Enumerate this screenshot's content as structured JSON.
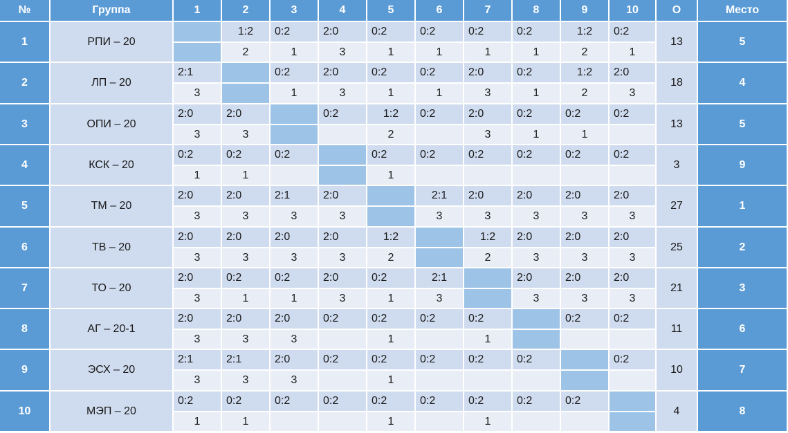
{
  "headers": {
    "no": "№",
    "group": "Группа",
    "opponents": [
      "1",
      "2",
      "3",
      "4",
      "5",
      "6",
      "7",
      "8",
      "9",
      "10"
    ],
    "points": "О",
    "place": "Место"
  },
  "rows": [
    {
      "no": "1",
      "group": "РПИ – 20",
      "scores": [
        "",
        "1:2",
        "0:2",
        "2:0",
        "0:2",
        "0:2",
        "0:2",
        "0:2",
        "1:2",
        "0:2"
      ],
      "pts": [
        "",
        "2",
        "1",
        "3",
        "1",
        "1",
        "1",
        "1",
        "2",
        "1"
      ],
      "points": "13",
      "place": "5"
    },
    {
      "no": "2",
      "group": "ЛП – 20",
      "scores": [
        "2:1",
        "",
        "0:2",
        "2:0",
        "0:2",
        "0:2",
        "2:0",
        "0:2",
        "1:2",
        "2:0"
      ],
      "pts": [
        "3",
        "",
        "1",
        "3",
        "1",
        "1",
        "3",
        "1",
        "2",
        "3"
      ],
      "points": "18",
      "place": "4"
    },
    {
      "no": "3",
      "group": "ОПИ – 20",
      "scores": [
        "2:0",
        "2:0",
        "",
        "0:2",
        "1:2",
        "0:2",
        "2:0",
        "0:2",
        "0:2",
        "0:2"
      ],
      "pts": [
        "3",
        "3",
        "",
        "",
        "2",
        "",
        "3",
        "1",
        "1",
        ""
      ],
      "points": "13",
      "place": "5"
    },
    {
      "no": "4",
      "group": "КСК – 20",
      "scores": [
        "0:2",
        "0:2",
        "0:2",
        "",
        "0:2",
        "0:2",
        "0:2",
        "0:2",
        "0:2",
        "0:2"
      ],
      "pts": [
        "1",
        "1",
        "",
        "",
        "1",
        "",
        "",
        "",
        "",
        ""
      ],
      "points": "3",
      "place": "9"
    },
    {
      "no": "5",
      "group": "ТМ – 20",
      "scores": [
        "2:0",
        "2:0",
        "2:1",
        "2:0",
        "",
        "2:1",
        "2:0",
        "2:0",
        "2:0",
        "2:0"
      ],
      "pts": [
        "3",
        "3",
        "3",
        "3",
        "",
        "3",
        "3",
        "3",
        "3",
        "3"
      ],
      "points": "27",
      "place": "1"
    },
    {
      "no": "6",
      "group": "ТВ – 20",
      "scores": [
        "2:0",
        "2:0",
        "2:0",
        "2:0",
        "1:2",
        "",
        "1:2",
        "2:0",
        "2:0",
        "2:0"
      ],
      "pts": [
        "3",
        "3",
        "3",
        "3",
        "2",
        "",
        "2",
        "3",
        "3",
        "3"
      ],
      "points": "25",
      "place": "2"
    },
    {
      "no": "7",
      "group": "ТО – 20",
      "scores": [
        "2:0",
        "0:2",
        "0:2",
        "2:0",
        "0:2",
        "2:1",
        "",
        "2:0",
        "2:0",
        "2:0"
      ],
      "pts": [
        "3",
        "1",
        "1",
        "3",
        "1",
        "3",
        "",
        "3",
        "3",
        "3"
      ],
      "points": "21",
      "place": "3"
    },
    {
      "no": "8",
      "group": "АГ – 20-1",
      "scores": [
        "2:0",
        "2:0",
        "2:0",
        "0:2",
        "0:2",
        "0:2",
        "0:2",
        "",
        "0:2",
        "0:2"
      ],
      "pts": [
        "3",
        "3",
        "3",
        "",
        "1",
        "",
        "1",
        "",
        "",
        ""
      ],
      "points": "11",
      "place": "6"
    },
    {
      "no": "9",
      "group": "ЭСХ – 20",
      "scores": [
        "2:1",
        "2:1",
        "2:0",
        "0:2",
        "0:2",
        "0:2",
        "0:2",
        "0:2",
        "",
        "0:2"
      ],
      "pts": [
        "3",
        "3",
        "3",
        "",
        "1",
        "",
        "",
        "",
        "",
        ""
      ],
      "points": "10",
      "place": "7"
    },
    {
      "no": "10",
      "group": "МЭП – 20",
      "scores": [
        "0:2",
        "0:2",
        "0:2",
        "0:2",
        "0:2",
        "0:2",
        "0:2",
        "0:2",
        "0:2",
        ""
      ],
      "pts": [
        "1",
        "1",
        "",
        "",
        "1",
        "",
        "1",
        "",
        "",
        ""
      ],
      "points": "4",
      "place": "8"
    }
  ],
  "colors": {
    "header": "#5b9bd5",
    "label_cell": "#cfdbee",
    "score_row": "#cfdbee",
    "points_row": "#e8edf6",
    "diagonal": "#9dc3e6"
  }
}
